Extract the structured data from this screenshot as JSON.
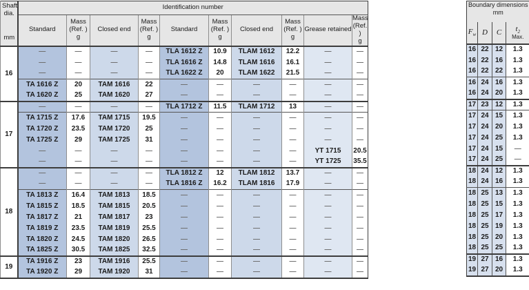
{
  "main_table": {
    "header": {
      "title": "Identification number",
      "shaft": {
        "l1": "Shaft",
        "l2": "dia.",
        "unit": "mm"
      },
      "columns": [
        {
          "label": "Standard"
        },
        {
          "l1": "Mass",
          "l2": "(Ref. )",
          "l3": "g"
        },
        {
          "label": "Closed end"
        },
        {
          "l1": "Mass",
          "l2": "(Ref. )",
          "l3": "g"
        },
        {
          "label": "Standard"
        },
        {
          "l1": "Mass",
          "l2": "(Ref. )",
          "l3": "g"
        },
        {
          "label": "Closed end"
        },
        {
          "l1": "Mass",
          "l2": "(Ref. )",
          "l3": "g"
        },
        {
          "label": "Grease retained"
        },
        {
          "l1": "Mass",
          "l2": "(Ref. )",
          "l3": "g"
        }
      ]
    },
    "groups": [
      {
        "shaft": "16",
        "blocks": [
          {
            "rows": [
              {
                "id": [
                  "—",
                  "—",
                  "—",
                  "—",
                  "TLA 1612 Z",
                  "10.9",
                  "TLAM 1612",
                  "12.2",
                  "—",
                  "—"
                ],
                "bd": [
                  "16",
                  "22",
                  "12",
                  "1.3"
                ]
              },
              {
                "id": [
                  "—",
                  "—",
                  "—",
                  "—",
                  "TLA 1616 Z",
                  "14.8",
                  "TLAM 1616",
                  "16.1",
                  "—",
                  "—"
                ],
                "bd": [
                  "16",
                  "22",
                  "16",
                  "1.3"
                ]
              },
              {
                "id": [
                  "—",
                  "—",
                  "—",
                  "—",
                  "TLA 1622 Z",
                  "20",
                  "TLAM 1622",
                  "21.5",
                  "—",
                  "—"
                ],
                "bd": [
                  "16",
                  "22",
                  "22",
                  "1.3"
                ]
              }
            ]
          },
          {
            "rows": [
              {
                "id": [
                  "TA 1616 Z",
                  "20",
                  "TAM 1616",
                  "22",
                  "—",
                  "—",
                  "—",
                  "—",
                  "—",
                  "—"
                ],
                "bd": [
                  "16",
                  "24",
                  "16",
                  "1.3"
                ]
              },
              {
                "id": [
                  "TA 1620 Z",
                  "25",
                  "TAM 1620",
                  "27",
                  "—",
                  "—",
                  "—",
                  "—",
                  "—",
                  "—"
                ],
                "bd": [
                  "16",
                  "24",
                  "20",
                  "1.3"
                ]
              }
            ]
          }
        ]
      },
      {
        "shaft": "17",
        "blocks": [
          {
            "rows": [
              {
                "id": [
                  "—",
                  "—",
                  "—",
                  "—",
                  "TLA 1712 Z",
                  "11.5",
                  "TLAM 1712",
                  "13",
                  "—",
                  "—"
                ],
                "bd": [
                  "17",
                  "23",
                  "12",
                  "1.3"
                ]
              }
            ]
          },
          {
            "rows": [
              {
                "id": [
                  "TA 1715 Z",
                  "17.6",
                  "TAM 1715",
                  "19.5",
                  "—",
                  "—",
                  "—",
                  "—",
                  "—",
                  "—"
                ],
                "bd": [
                  "17",
                  "24",
                  "15",
                  "1.3"
                ]
              },
              {
                "id": [
                  "TA 1720 Z",
                  "23.5",
                  "TAM 1720",
                  "25",
                  "—",
                  "—",
                  "—",
                  "—",
                  "—",
                  "—"
                ],
                "bd": [
                  "17",
                  "24",
                  "20",
                  "1.3"
                ]
              },
              {
                "id": [
                  "TA 1725 Z",
                  "29",
                  "TAM 1725",
                  "31",
                  "—",
                  "—",
                  "—",
                  "—",
                  "—",
                  "—"
                ],
                "bd": [
                  "17",
                  "24",
                  "25",
                  "1.3"
                ]
              },
              {
                "id": [
                  "—",
                  "—",
                  "—",
                  "—",
                  "—",
                  "—",
                  "—",
                  "—",
                  "YT 1715",
                  "20.5"
                ],
                "bd": [
                  "17",
                  "24",
                  "15",
                  "—"
                ]
              },
              {
                "id": [
                  "—",
                  "—",
                  "—",
                  "—",
                  "—",
                  "—",
                  "—",
                  "—",
                  "YT 1725",
                  "35.5"
                ],
                "bd": [
                  "17",
                  "24",
                  "25",
                  "—"
                ]
              }
            ]
          }
        ]
      },
      {
        "shaft": "18",
        "blocks": [
          {
            "rows": [
              {
                "id": [
                  "—",
                  "—",
                  "—",
                  "—",
                  "TLA 1812 Z",
                  "12",
                  "TLAM 1812",
                  "13.7",
                  "—",
                  "—"
                ],
                "bd": [
                  "18",
                  "24",
                  "12",
                  "1.3"
                ]
              },
              {
                "id": [
                  "—",
                  "—",
                  "—",
                  "—",
                  "TLA 1816 Z",
                  "16.2",
                  "TLAM 1816",
                  "17.9",
                  "—",
                  "—"
                ],
                "bd": [
                  "18",
                  "24",
                  "16",
                  "1.3"
                ]
              }
            ]
          },
          {
            "rows": [
              {
                "id": [
                  "TA 1813 Z",
                  "16.4",
                  "TAM 1813",
                  "18.5",
                  "—",
                  "—",
                  "—",
                  "—",
                  "—",
                  "—"
                ],
                "bd": [
                  "18",
                  "25",
                  "13",
                  "1.3"
                ]
              },
              {
                "id": [
                  "TA 1815 Z",
                  "18.5",
                  "TAM 1815",
                  "20.5",
                  "—",
                  "—",
                  "—",
                  "—",
                  "—",
                  "—"
                ],
                "bd": [
                  "18",
                  "25",
                  "15",
                  "1.3"
                ]
              },
              {
                "id": [
                  "TA 1817 Z",
                  "21",
                  "TAM 1817",
                  "23",
                  "—",
                  "—",
                  "—",
                  "—",
                  "—",
                  "—"
                ],
                "bd": [
                  "18",
                  "25",
                  "17",
                  "1.3"
                ]
              },
              {
                "id": [
                  "TA 1819 Z",
                  "23.5",
                  "TAM 1819",
                  "25.5",
                  "—",
                  "—",
                  "—",
                  "—",
                  "—",
                  "—"
                ],
                "bd": [
                  "18",
                  "25",
                  "19",
                  "1.3"
                ]
              },
              {
                "id": [
                  "TA 1820 Z",
                  "24.5",
                  "TAM 1820",
                  "26.5",
                  "—",
                  "—",
                  "—",
                  "—",
                  "—",
                  "—"
                ],
                "bd": [
                  "18",
                  "25",
                  "20",
                  "1.3"
                ]
              },
              {
                "id": [
                  "TA 1825 Z",
                  "30.5",
                  "TAM 1825",
                  "32.5",
                  "—",
                  "—",
                  "—",
                  "—",
                  "—",
                  "—"
                ],
                "bd": [
                  "18",
                  "25",
                  "25",
                  "1.3"
                ]
              }
            ]
          }
        ]
      },
      {
        "shaft": "19",
        "blocks": [
          {
            "rows": [
              {
                "id": [
                  "TA 1916 Z",
                  "23",
                  "TAM 1916",
                  "25.5",
                  "—",
                  "—",
                  "—",
                  "—",
                  "—",
                  "—"
                ],
                "bd": [
                  "19",
                  "27",
                  "16",
                  "1.3"
                ]
              },
              {
                "id": [
                  "TA 1920 Z",
                  "29",
                  "TAM 1920",
                  "31",
                  "—",
                  "—",
                  "—",
                  "—",
                  "—",
                  "—"
                ],
                "bd": [
                  "19",
                  "27",
                  "20",
                  "1.3"
                ]
              }
            ]
          }
        ]
      }
    ]
  },
  "boundary_table": {
    "title": "Boundary dimensions",
    "unit": "mm",
    "cols": {
      "fw": {
        "main": "F",
        "sub": "w"
      },
      "d": "D",
      "c": "C",
      "t2": {
        "main": "t",
        "sub": "2",
        "line2": "Max."
      }
    }
  },
  "colors": {
    "standard_column": "#b3c4de",
    "closed_end_column": "#cdd9ea",
    "grease_column": "#dfe7f2",
    "boundary_columns": "#d7e0ee",
    "header_bg": "#e6e6e6"
  }
}
